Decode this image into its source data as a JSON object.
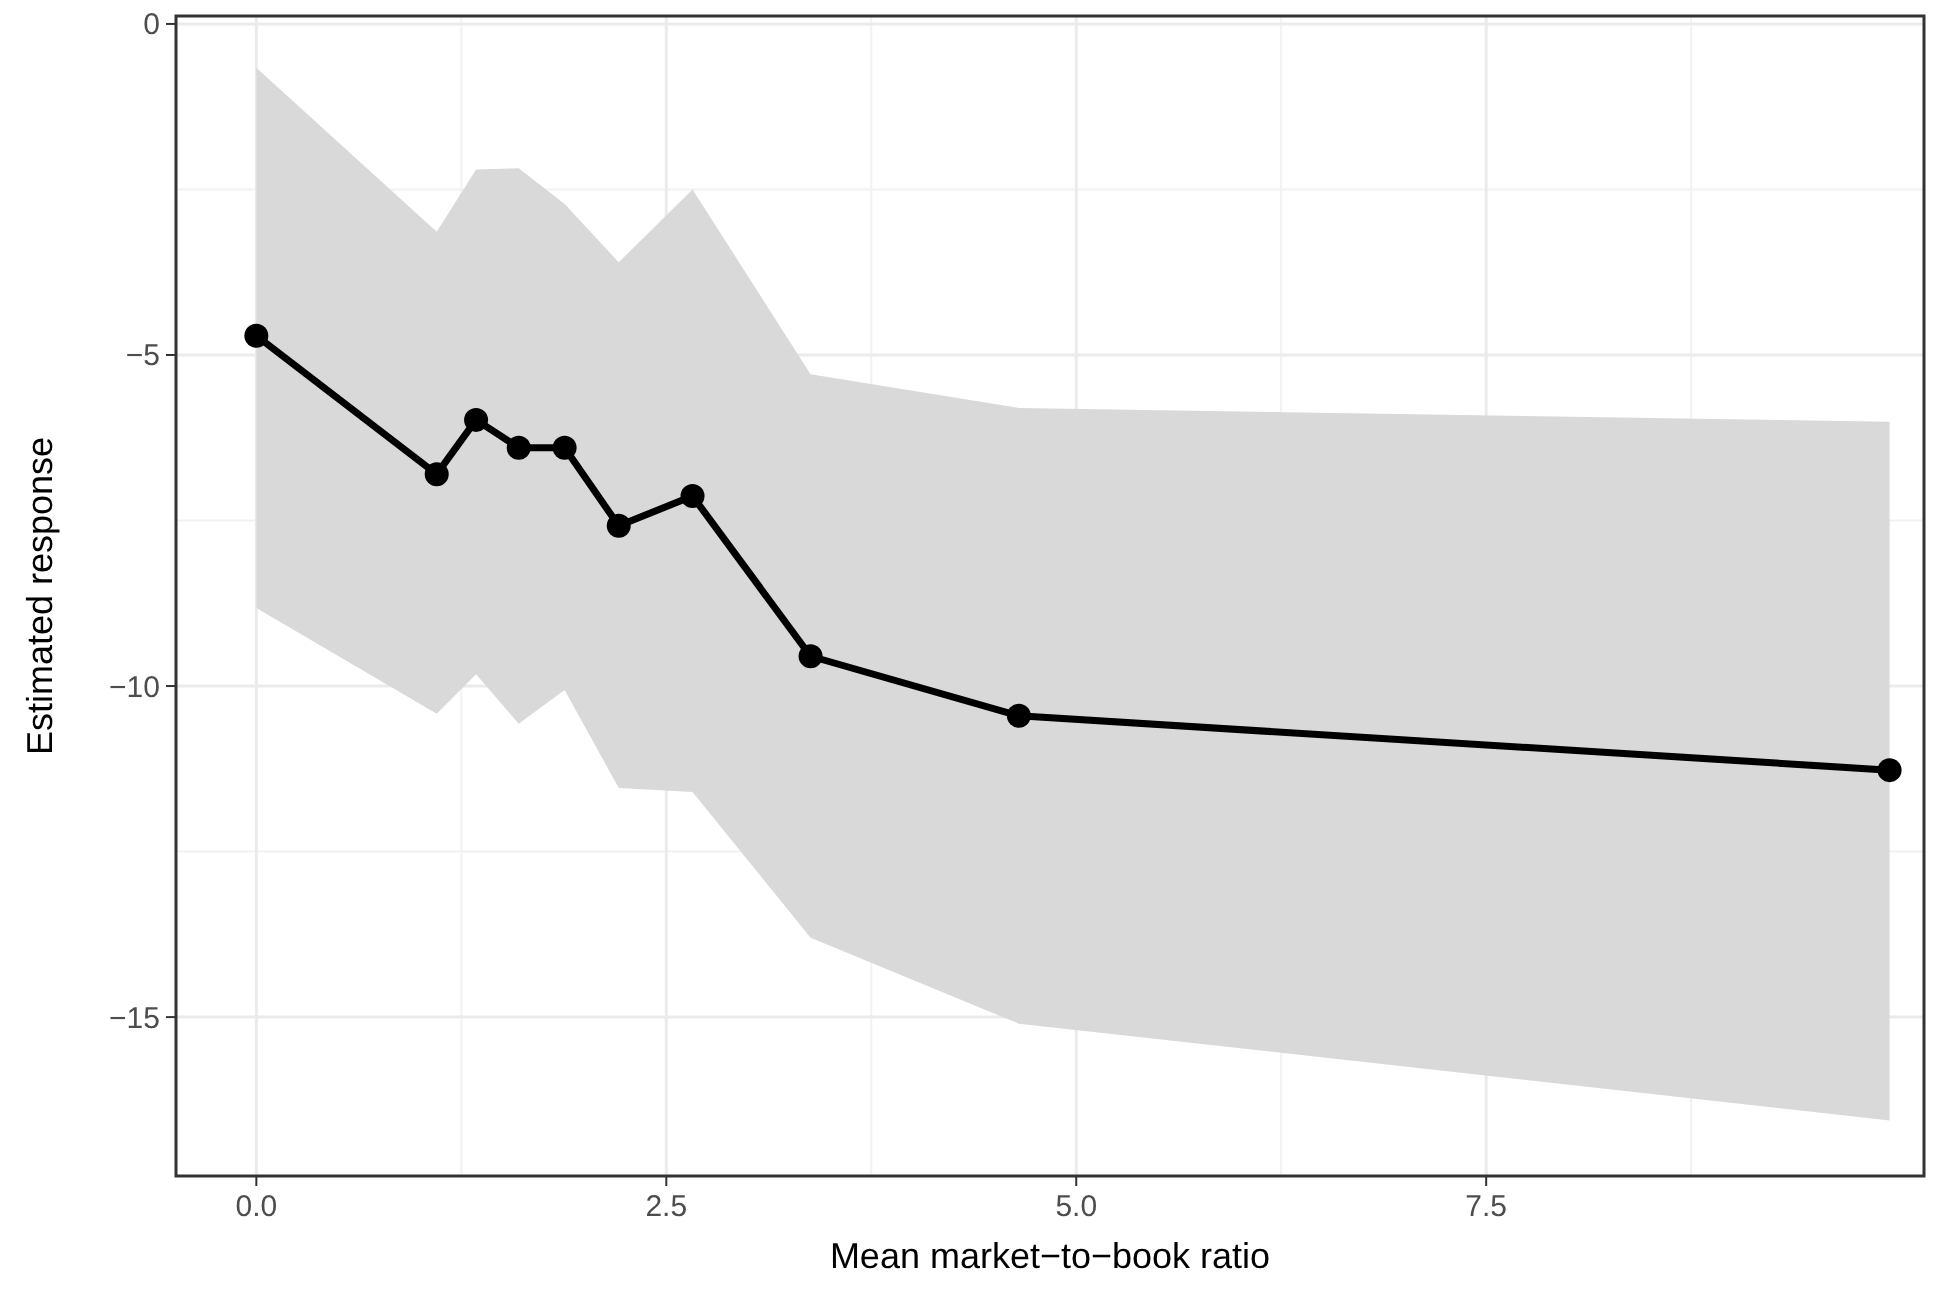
{
  "chart_data": {
    "type": "line",
    "xlabel": "Mean market−to−book ratio",
    "ylabel": "Estimated response",
    "xlim": [
      -0.49,
      10.17
    ],
    "xticks": [
      {
        "value": 0,
        "label": "0.0"
      },
      {
        "value": 2.5,
        "label": "2.5"
      },
      {
        "value": 5,
        "label": "5.0"
      },
      {
        "value": 7.5,
        "label": "7.5"
      }
    ],
    "ylim": [
      -17.4,
      0.12
    ],
    "yticks": [
      {
        "value": 0,
        "label": "0"
      },
      {
        "value": -5,
        "label": "−5"
      },
      {
        "value": -10,
        "label": "−10"
      },
      {
        "value": -15,
        "label": "−15"
      }
    ],
    "grid": true,
    "marker": "circle",
    "line_style": "solid",
    "series": [
      {
        "color": "#000000",
        "x": [
          0.0,
          1.1,
          1.34,
          1.6,
          1.88,
          2.21,
          2.66,
          3.38,
          4.65,
          9.96
        ],
        "values": [
          -4.71,
          -6.8,
          -5.98,
          -6.4,
          -6.4,
          -7.58,
          -7.13,
          -9.55,
          -10.45,
          -11.27
        ],
        "lower": [
          -8.82,
          -10.42,
          -9.82,
          -10.57,
          -10.06,
          -11.54,
          -11.6,
          -13.8,
          -15.1,
          -16.56
        ],
        "upper": [
          -0.66,
          -3.14,
          -2.2,
          -2.18,
          -2.72,
          -3.6,
          -2.5,
          -5.29,
          -5.8,
          -6.01
        ]
      }
    ]
  }
}
